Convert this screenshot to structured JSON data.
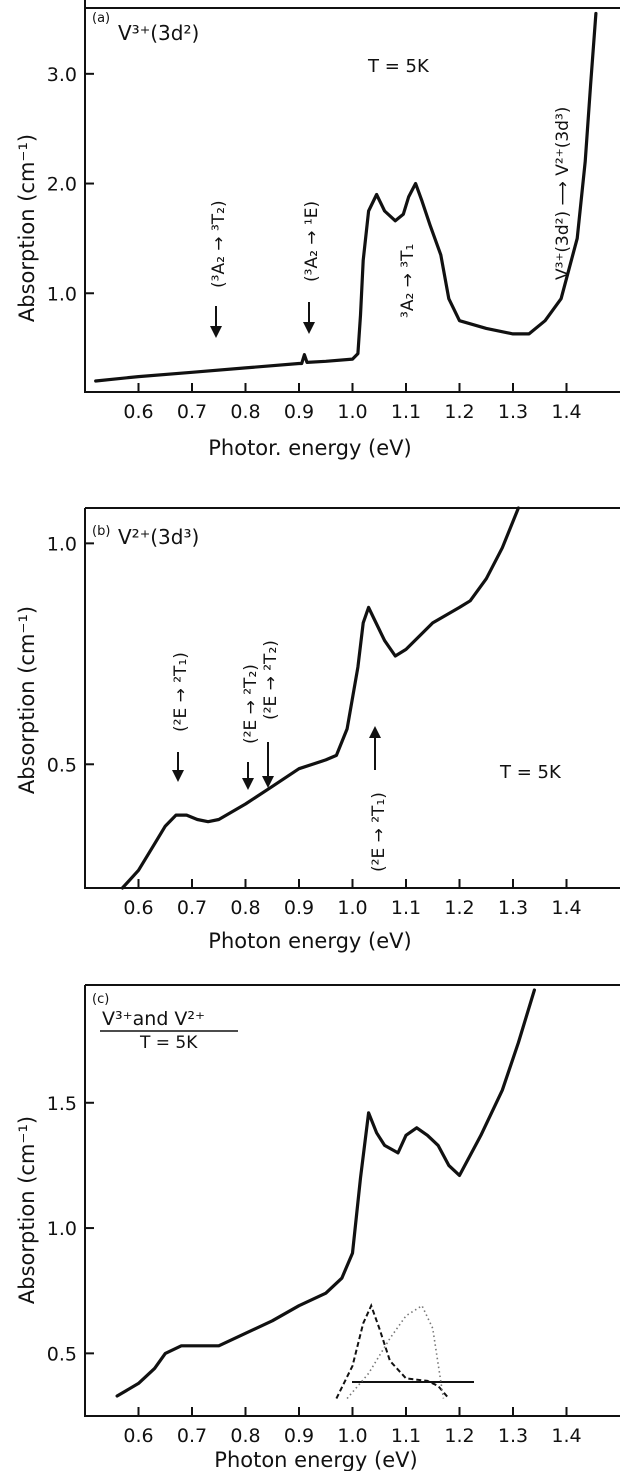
{
  "chart_data": [
    {
      "type": "line",
      "panel_label": "(a)",
      "species": "V³⁺(3d²)",
      "temperature": "T = 5K",
      "xlabel": "Photor. energy   (eV)",
      "ylabel": "Absorption  (cm⁻¹)",
      "xlim": [
        0.5,
        1.5
      ],
      "ylim": [
        0.1,
        3.6
      ],
      "xticks": [
        0.6,
        0.7,
        0.8,
        0.9,
        1.0,
        1.1,
        1.2,
        1.3,
        1.4
      ],
      "xtick_labels": [
        "0.6",
        "0.7",
        "0.8",
        "0.9",
        "1.0",
        "1.1",
        "1.2",
        "1.3",
        "1.4"
      ],
      "yticks": [
        1.0,
        2.0,
        3.0
      ],
      "ytick_labels": [
        "1.0",
        "2.0",
        "3.0"
      ],
      "series": [
        {
          "x": [
            0.52,
            0.6,
            0.7,
            0.8,
            0.9,
            0.905,
            0.91,
            0.915,
            0.95,
            1.0,
            1.01,
            1.015,
            1.02,
            1.03,
            1.045,
            1.06,
            1.08,
            1.095,
            1.105,
            1.118,
            1.13,
            1.145,
            1.165,
            1.18,
            1.2,
            1.25,
            1.3,
            1.33,
            1.36,
            1.39,
            1.42,
            1.435,
            1.445,
            1.455
          ],
          "y": [
            0.2,
            0.24,
            0.28,
            0.32,
            0.36,
            0.36,
            0.44,
            0.37,
            0.38,
            0.4,
            0.45,
            0.8,
            1.3,
            1.75,
            1.9,
            1.75,
            1.66,
            1.72,
            1.88,
            2.0,
            1.84,
            1.62,
            1.35,
            0.95,
            0.75,
            0.68,
            0.63,
            0.63,
            0.75,
            0.95,
            1.5,
            2.2,
            2.9,
            3.55
          ]
        }
      ],
      "annotations": [
        {
          "text": "(³A₂ → ³T₂)",
          "x": 0.74,
          "arrow_to_y": 0.55
        },
        {
          "text": "(³A₂ → ¹E)",
          "x": 0.91,
          "arrow_to_y": 0.6
        },
        {
          "text": "³A₂ → ³T₁",
          "x": 1.1,
          "y": 0.8
        },
        {
          "text": "V³⁺(3d²) ⟶ V²⁺(3d³)",
          "x": 1.37,
          "y": 2.4
        }
      ]
    },
    {
      "type": "line",
      "panel_label": "(b)",
      "species": "V²⁺(3d³)",
      "temperature": "T = 5K",
      "xlabel": "Photon energy   (eV)",
      "ylabel": "Absorption (cm⁻¹)",
      "xlim": [
        0.5,
        1.5
      ],
      "ylim": [
        0.22,
        1.08
      ],
      "xticks": [
        0.6,
        0.7,
        0.8,
        0.9,
        1.0,
        1.1,
        1.2,
        1.3,
        1.4
      ],
      "xtick_labels": [
        "0.6",
        "0.7",
        "0.8",
        "0.9",
        "1.0",
        "1.1",
        "1.2",
        "1.3",
        "1.4"
      ],
      "yticks": [
        0.5,
        1.0
      ],
      "ytick_labels": [
        "0.5",
        "1.0"
      ],
      "series": [
        {
          "x": [
            0.57,
            0.6,
            0.63,
            0.65,
            0.67,
            0.69,
            0.71,
            0.73,
            0.75,
            0.8,
            0.85,
            0.9,
            0.95,
            0.97,
            0.99,
            1.01,
            1.02,
            1.03,
            1.04,
            1.06,
            1.08,
            1.1,
            1.15,
            1.2,
            1.22,
            1.25,
            1.28,
            1.31
          ],
          "y": [
            0.22,
            0.26,
            0.32,
            0.36,
            0.385,
            0.385,
            0.375,
            0.37,
            0.375,
            0.41,
            0.45,
            0.49,
            0.51,
            0.52,
            0.58,
            0.72,
            0.82,
            0.855,
            0.83,
            0.78,
            0.745,
            0.76,
            0.82,
            0.855,
            0.87,
            0.92,
            0.99,
            1.08
          ]
        }
      ],
      "annotations": [
        {
          "text": "(²E → ²T₁)",
          "x": 0.68,
          "arrow_to_y": 0.42
        },
        {
          "text": "(²E → ²T₂)",
          "x": 0.8,
          "arrow_to_y": 0.44
        },
        {
          "text": "(²E → ²T₂)",
          "x": 0.84,
          "arrow_to_y": 0.46
        },
        {
          "text": "(²E → ²T₁)",
          "x": 1.03,
          "arrow_from_below": true
        }
      ]
    },
    {
      "type": "line",
      "panel_label": "(c)",
      "species": "V³⁺and V²⁺",
      "temperature": "T = 5K",
      "xlabel": "Photon   energy     (eV)",
      "ylabel": "Absorption (cm⁻¹)",
      "xlim": [
        0.5,
        1.5
      ],
      "ylim": [
        0.25,
        1.97
      ],
      "xticks": [
        0.6,
        0.7,
        0.8,
        0.9,
        1.0,
        1.1,
        1.2,
        1.3,
        1.4
      ],
      "xtick_labels": [
        "0.6",
        "0.7",
        "0.8",
        "0.9",
        "1.0",
        "1.1",
        "1.2",
        "1.3",
        "1.4"
      ],
      "yticks": [
        0.5,
        1.0,
        1.5
      ],
      "ytick_labels": [
        "0.5",
        "1.0",
        "1.5"
      ],
      "series": [
        {
          "x": [
            0.56,
            0.6,
            0.63,
            0.65,
            0.68,
            0.71,
            0.75,
            0.8,
            0.85,
            0.9,
            0.95,
            0.98,
            1.0,
            1.015,
            1.03,
            1.045,
            1.06,
            1.085,
            1.1,
            1.12,
            1.14,
            1.16,
            1.18,
            1.2,
            1.24,
            1.28,
            1.31,
            1.34
          ],
          "y": [
            0.33,
            0.38,
            0.44,
            0.5,
            0.53,
            0.53,
            0.53,
            0.58,
            0.63,
            0.69,
            0.74,
            0.8,
            0.9,
            1.2,
            1.46,
            1.38,
            1.33,
            1.3,
            1.37,
            1.4,
            1.37,
            1.33,
            1.25,
            1.21,
            1.37,
            1.55,
            1.74,
            1.95
          ]
        }
      ],
      "inset": {
        "series": [
          {
            "style": "dashed",
            "x": [
              0.97,
              1.0,
              1.02,
              1.035,
              1.05,
              1.07,
              1.1,
              1.14,
              1.16,
              1.18
            ],
            "y": [
              0.32,
              0.45,
              0.62,
              0.69,
              0.6,
              0.47,
              0.4,
              0.39,
              0.37,
              0.32
            ]
          },
          {
            "style": "dotted",
            "x": [
              0.99,
              1.03,
              1.07,
              1.1,
              1.13,
              1.15,
              1.17
            ],
            "y": [
              0.32,
              0.42,
              0.56,
              0.65,
              0.69,
              0.6,
              0.32
            ]
          }
        ]
      }
    }
  ]
}
